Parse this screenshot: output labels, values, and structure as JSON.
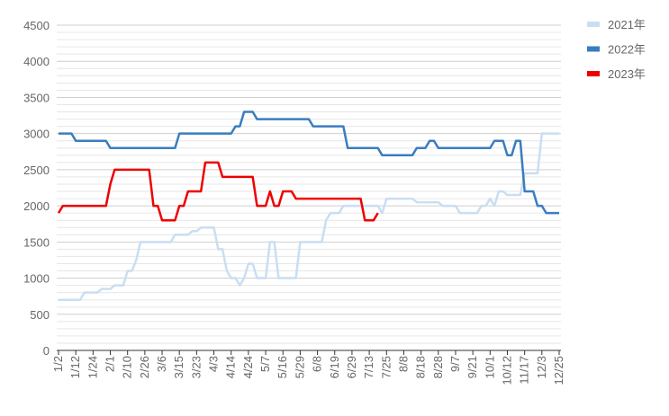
{
  "chart_data": {
    "type": "line",
    "categories": [
      "1/2",
      null,
      null,
      null,
      "1/12",
      null,
      null,
      null,
      "1/24",
      null,
      null,
      null,
      "2/1",
      null,
      null,
      null,
      "2/10",
      null,
      null,
      null,
      "2/26",
      null,
      null,
      null,
      "3/6",
      null,
      null,
      null,
      "3/15",
      null,
      null,
      null,
      "3/23",
      null,
      null,
      null,
      "4/3",
      null,
      null,
      null,
      "4/14",
      null,
      null,
      null,
      "4/24",
      null,
      null,
      null,
      "5/7",
      null,
      null,
      null,
      "5/16",
      null,
      null,
      null,
      "5/29",
      null,
      null,
      null,
      "6/8",
      null,
      null,
      null,
      "6/19",
      null,
      null,
      null,
      "6/29",
      null,
      null,
      null,
      "7/13",
      null,
      null,
      null,
      "7/25",
      null,
      null,
      null,
      "8/8",
      null,
      null,
      null,
      "8/18",
      null,
      null,
      null,
      "8/28",
      null,
      null,
      null,
      "9/7",
      null,
      null,
      null,
      "9/21",
      null,
      null,
      null,
      "10/1",
      null,
      null,
      null,
      "10/12",
      null,
      null,
      null,
      "11/17",
      null,
      null,
      null,
      "12/3",
      null,
      null,
      null,
      "12/25"
    ],
    "series": [
      {
        "name": "2021年",
        "color": "#c9def2",
        "values": [
          700,
          700,
          700,
          700,
          700,
          700,
          800,
          800,
          800,
          800,
          850,
          850,
          850,
          900,
          900,
          900,
          1100,
          1100,
          1250,
          1500,
          1500,
          1500,
          1500,
          1500,
          1500,
          1500,
          1500,
          1600,
          1600,
          1600,
          1600,
          1650,
          1650,
          1700,
          1700,
          1700,
          1700,
          1400,
          1400,
          1100,
          1000,
          1000,
          900,
          1000,
          1200,
          1200,
          1000,
          1000,
          1000,
          1500,
          1500,
          1000,
          1000,
          1000,
          1000,
          1000,
          1500,
          1500,
          1500,
          1500,
          1500,
          1500,
          1800,
          1900,
          1900,
          1900,
          2000,
          2000,
          2000,
          2000,
          2000,
          2000,
          2000,
          2000,
          2000,
          1900,
          2100,
          2100,
          2100,
          2100,
          2100,
          2100,
          2100,
          2050,
          2050,
          2050,
          2050,
          2050,
          2050,
          2000,
          2000,
          2000,
          2000,
          1900,
          1900,
          1900,
          1900,
          1900,
          2000,
          2000,
          2100,
          2000,
          2200,
          2200,
          2150,
          2150,
          2150,
          2150,
          2450,
          2450,
          2450,
          2450,
          3000,
          3000,
          3000,
          3000,
          3000
        ]
      },
      {
        "name": "2022年",
        "color": "#3a7dbf",
        "values": [
          3000,
          3000,
          3000,
          3000,
          2900,
          2900,
          2900,
          2900,
          2900,
          2900,
          2900,
          2900,
          2800,
          2800,
          2800,
          2800,
          2800,
          2800,
          2800,
          2800,
          2800,
          2800,
          2800,
          2800,
          2800,
          2800,
          2800,
          2800,
          3000,
          3000,
          3000,
          3000,
          3000,
          3000,
          3000,
          3000,
          3000,
          3000,
          3000,
          3000,
          3000,
          3100,
          3100,
          3300,
          3300,
          3300,
          3200,
          3200,
          3200,
          3200,
          3200,
          3200,
          3200,
          3200,
          3200,
          3200,
          3200,
          3200,
          3200,
          3100,
          3100,
          3100,
          3100,
          3100,
          3100,
          3100,
          3100,
          2800,
          2800,
          2800,
          2800,
          2800,
          2800,
          2800,
          2800,
          2700,
          2700,
          2700,
          2700,
          2700,
          2700,
          2700,
          2700,
          2800,
          2800,
          2800,
          2900,
          2900,
          2800,
          2800,
          2800,
          2800,
          2800,
          2800,
          2800,
          2800,
          2800,
          2800,
          2800,
          2800,
          2800,
          2900,
          2900,
          2900,
          2700,
          2700,
          2900,
          2900,
          2200,
          2200,
          2200,
          2000,
          2000,
          1900,
          1900,
          1900,
          1900
        ]
      },
      {
        "name": "2023年",
        "color": "#ee0000",
        "values": [
          1900,
          2000,
          2000,
          2000,
          2000,
          2000,
          2000,
          2000,
          2000,
          2000,
          2000,
          2000,
          2300,
          2500,
          2500,
          2500,
          2500,
          2500,
          2500,
          2500,
          2500,
          2500,
          2000,
          2000,
          1800,
          1800,
          1800,
          1800,
          2000,
          2000,
          2200,
          2200,
          2200,
          2200,
          2600,
          2600,
          2600,
          2600,
          2400,
          2400,
          2400,
          2400,
          2400,
          2400,
          2400,
          2400,
          2000,
          2000,
          2000,
          2200,
          2000,
          2000,
          2200,
          2200,
          2200,
          2100,
          2100,
          2100,
          2100,
          2100,
          2100,
          2100,
          2100,
          2100,
          2100,
          2100,
          2100,
          2100,
          2100,
          2100,
          2100,
          1800,
          1800,
          1800,
          1900,
          null,
          null,
          null,
          null,
          null,
          null,
          null,
          null,
          null,
          null,
          null,
          null,
          null,
          null,
          null,
          null,
          null,
          null,
          null,
          null,
          null,
          null,
          null,
          null,
          null,
          null,
          null,
          null,
          null,
          null,
          null,
          null,
          null,
          null,
          null,
          null,
          null,
          null,
          null,
          null,
          null,
          null
        ]
      }
    ],
    "ylim": [
      0,
      4500
    ],
    "yticks": [
      0,
      500,
      1000,
      1500,
      2000,
      2500,
      3000,
      3500,
      4000,
      4500
    ],
    "minor_yticks": [
      100,
      200,
      300,
      400,
      600,
      700,
      800,
      900,
      1100,
      1200,
      1300,
      1400,
      1600,
      1700,
      1800,
      1900,
      2100,
      2200,
      2300,
      2400,
      2600,
      2700,
      2800,
      2900,
      3100,
      3200,
      3300,
      3400,
      3600,
      3700,
      3800,
      3900,
      4100,
      4200,
      4300,
      4400
    ],
    "grid": true,
    "legend": "right"
  }
}
